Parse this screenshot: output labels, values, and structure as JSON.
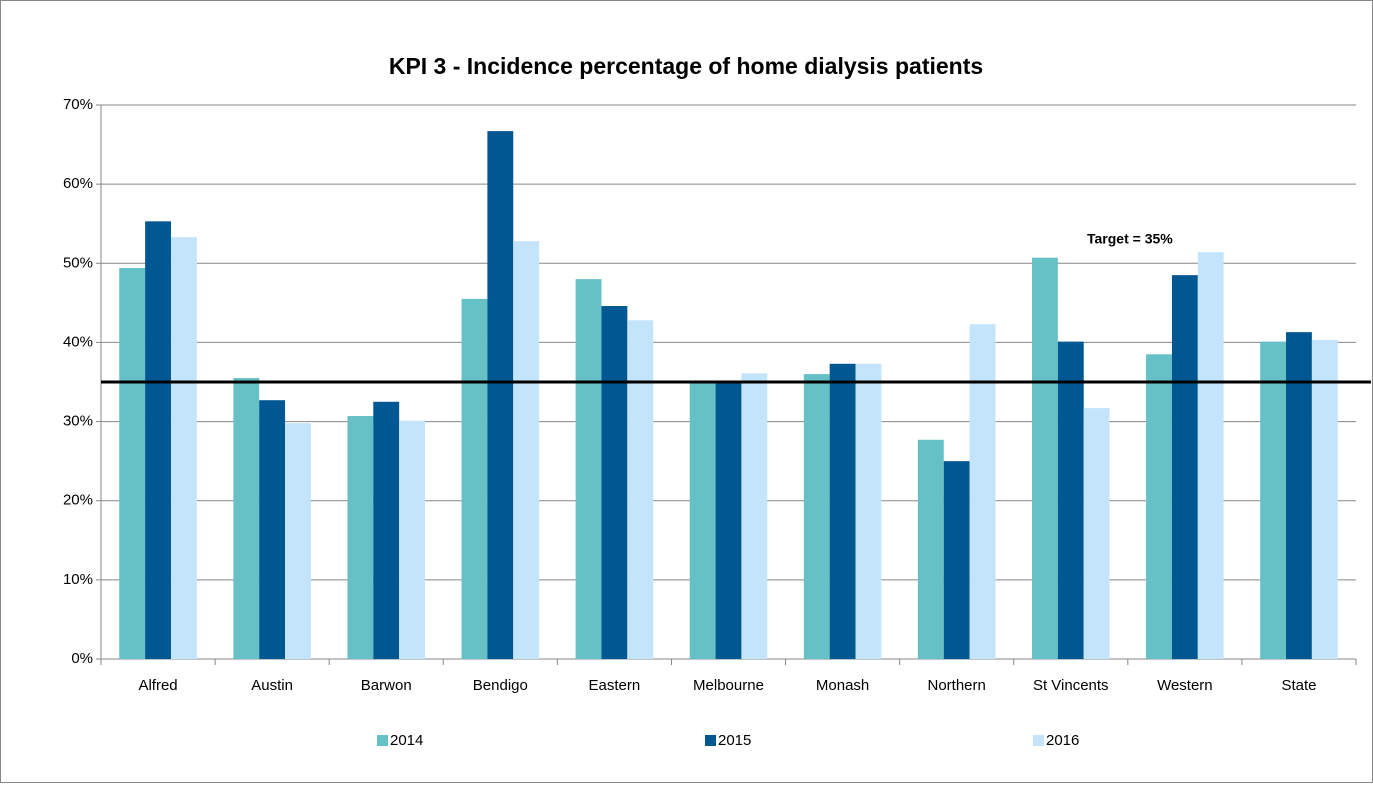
{
  "chart_data": {
    "type": "bar",
    "title": "KPI 3 - Incidence percentage of home dialysis patients",
    "categories": [
      "Alfred",
      "Austin",
      "Barwon",
      "Bendigo",
      "Eastern",
      "Melbourne",
      "Monash",
      "Northern",
      "St Vincents",
      "Western",
      "State"
    ],
    "series": [
      {
        "name": "2014",
        "color": "#66c1c7",
        "values": [
          49.4,
          35.5,
          30.7,
          45.5,
          48.0,
          35.0,
          36.0,
          27.7,
          50.7,
          38.5,
          40.1
        ]
      },
      {
        "name": "2015",
        "color": "#005791",
        "values": [
          55.3,
          32.7,
          32.5,
          66.7,
          44.6,
          34.9,
          37.3,
          25.0,
          40.1,
          48.5,
          41.3
        ]
      },
      {
        "name": "2016",
        "color": "#c3e4fa",
        "values": [
          53.3,
          29.8,
          30.1,
          52.8,
          42.8,
          36.1,
          37.3,
          42.3,
          31.7,
          51.4,
          40.3
        ]
      }
    ],
    "ylim": [
      0,
      70
    ],
    "yticks": [
      {
        "value": 0,
        "label": "0%"
      },
      {
        "value": 10,
        "label": "10%"
      },
      {
        "value": 20,
        "label": "20%"
      },
      {
        "value": 30,
        "label": "30%"
      },
      {
        "value": 40,
        "label": "40%"
      },
      {
        "value": 50,
        "label": "50%"
      },
      {
        "value": 60,
        "label": "60%"
      },
      {
        "value": 70,
        "label": "70%"
      }
    ],
    "grid": true,
    "target_line": {
      "value": 35,
      "label": "Target  = 35%"
    },
    "legend": "bottom"
  }
}
